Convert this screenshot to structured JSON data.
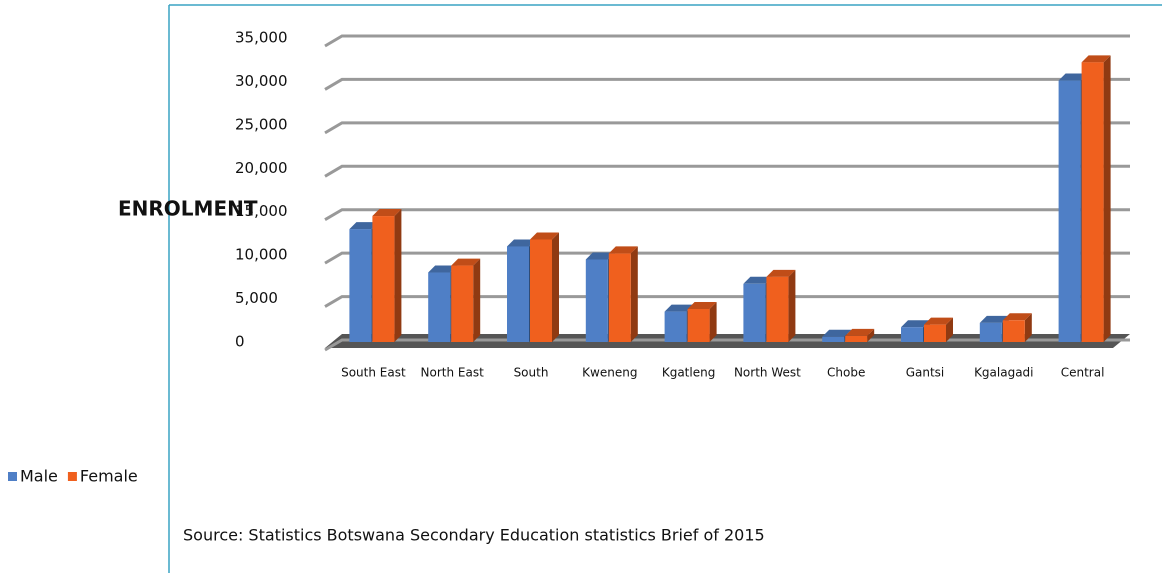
{
  "chart_data": {
    "type": "bar3d",
    "y_label": "ENROLMENT",
    "source": "Source: Statistics Botswana Secondary Education statistics Brief of 2015",
    "categories": [
      "South East",
      "North East",
      "South",
      "Kweneng",
      "Kgatleng",
      "North West",
      "Chobe",
      "Gantsi",
      "Kgalagadi",
      "Central"
    ],
    "series": [
      {
        "name": "Male",
        "color": "#4f7fc6",
        "values": [
          13000,
          8000,
          11000,
          9500,
          3500,
          6700,
          600,
          1700,
          2200,
          30100
        ]
      },
      {
        "name": "Female",
        "color": "#f0601e",
        "values": [
          14500,
          8800,
          11800,
          10200,
          3800,
          7500,
          700,
          2000,
          2500,
          32200
        ]
      }
    ],
    "ylim": [
      0,
      35000
    ],
    "yticks": [
      0,
      {
        "value": 5000,
        "label": "5,000"
      },
      {
        "value": 10000,
        "label": "10,000"
      },
      {
        "value": 15000,
        "label": "15,000"
      },
      {
        "value": 20000,
        "label": "20,000"
      },
      {
        "value": 25000,
        "label": "25,000"
      },
      {
        "value": 30000,
        "label": "30,000"
      },
      {
        "value": 35000,
        "label": "35,000"
      }
    ],
    "grid": true
  }
}
